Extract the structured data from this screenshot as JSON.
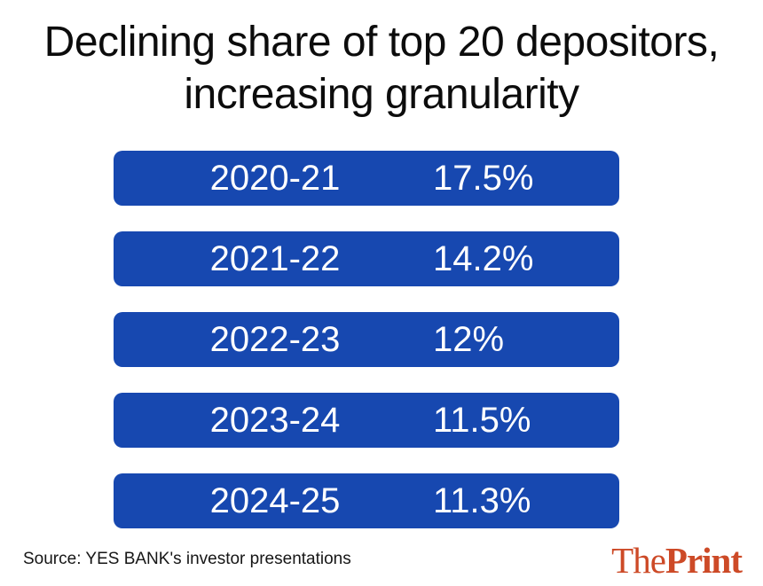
{
  "title": {
    "line1": "Declining share of top 20 depositors,",
    "line2": "increasing granularity"
  },
  "chart_data": {
    "type": "table",
    "title": "Declining share of top 20 depositors, increasing granularity",
    "categories": [
      "2020-21",
      "2021-22",
      "2022-23",
      "2023-24",
      "2024-25"
    ],
    "values": [
      17.5,
      14.2,
      12,
      11.5,
      11.3
    ],
    "value_labels": [
      "17.5%",
      "14.2%",
      "12%",
      "11.5%",
      "11.3%"
    ],
    "unit": "percent",
    "layout": "five equal-width rounded blue pills, year left-of-center, percentage right column"
  },
  "source": "Source: YES BANK's investor presentations",
  "logo": {
    "the": "The",
    "print": "Print"
  },
  "colors": {
    "background": "#ffffff",
    "bar": "#1748b0",
    "bar_text": "#ffffff",
    "title_text": "#0c0c0c",
    "source_text": "#161616",
    "logo": "#cd4a27"
  }
}
